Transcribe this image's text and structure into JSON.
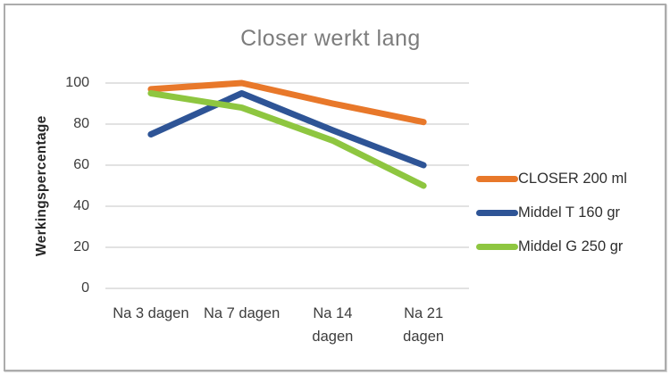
{
  "chart_data": {
    "type": "line",
    "title": "Closer werkt lang",
    "xlabel": "",
    "ylabel": "Werkingspercentage",
    "categories": [
      "Na 3 dagen",
      "Na 7 dagen",
      "Na 14\ndagen",
      "Na 21\ndagen"
    ],
    "yticks": [
      0,
      20,
      40,
      60,
      80,
      100
    ],
    "ylim": [
      0,
      100
    ],
    "grid": true,
    "legend_position": "right",
    "series": [
      {
        "name": "CLOSER 200 ml",
        "color": "#E8782A",
        "values": [
          97,
          100,
          90,
          81
        ]
      },
      {
        "name": "Middel T 160 gr",
        "color": "#2E5496",
        "values": [
          75,
          95,
          77,
          60
        ]
      },
      {
        "name": "Middel G 250 gr",
        "color": "#8EC640",
        "values": [
          95,
          88,
          72,
          50
        ]
      }
    ]
  },
  "colors": {
    "title_text": "#7C7C7C",
    "axis_text": "#3D3D3D",
    "gridline": "#D0D0D0",
    "frame_border": "#ACACAC",
    "background": "#FFFFFF"
  }
}
